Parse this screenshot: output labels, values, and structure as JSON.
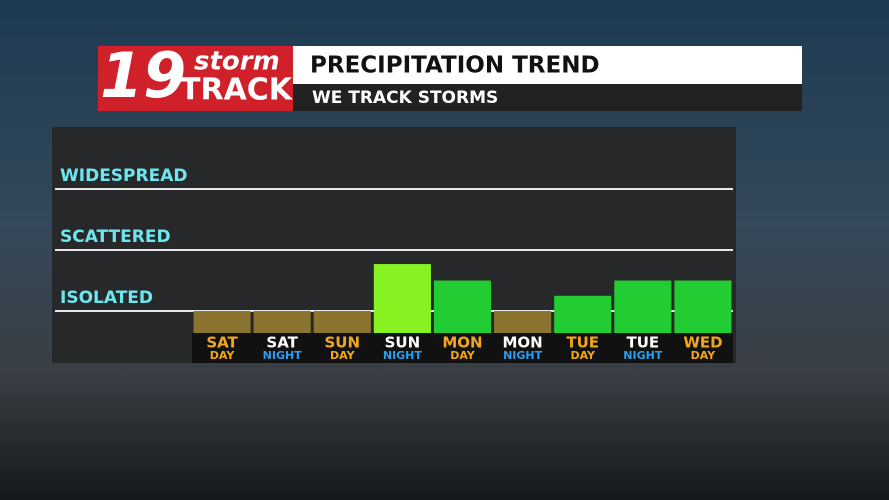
{
  "logo": {
    "number": "19",
    "top": "storm",
    "bottom": "TRACK"
  },
  "chart_data": {
    "type": "bar",
    "title": "PRECIPITATION TREND",
    "subtitle": "WE TRACK STORMS",
    "categories": [
      [
        "SAT",
        "DAY"
      ],
      [
        "SAT",
        "NIGHT"
      ],
      [
        "SUN",
        "DAY"
      ],
      [
        "SUN",
        "NIGHT"
      ],
      [
        "MON",
        "DAY"
      ],
      [
        "MON",
        "NIGHT"
      ],
      [
        "TUE",
        "DAY"
      ],
      [
        "TUE",
        "NIGHT"
      ],
      [
        "WED",
        "DAY"
      ]
    ],
    "values": [
      1.0,
      1.0,
      1.0,
      1.77,
      1.5,
      1.0,
      1.25,
      1.5,
      1.5
    ],
    "colors": [
      "#8a7430",
      "#8a7430",
      "#8a7430",
      "#86f222",
      "#22cc33",
      "#8a7430",
      "#22cc33",
      "#22cc33",
      "#22cc33"
    ],
    "ylim": [
      0.64,
      4
    ],
    "yticks": [
      {
        "value": 1,
        "label": "ISOLATED"
      },
      {
        "value": 2,
        "label": "SCATTERED"
      },
      {
        "value": 3,
        "label": "WIDESPREAD"
      }
    ],
    "grid": true
  }
}
